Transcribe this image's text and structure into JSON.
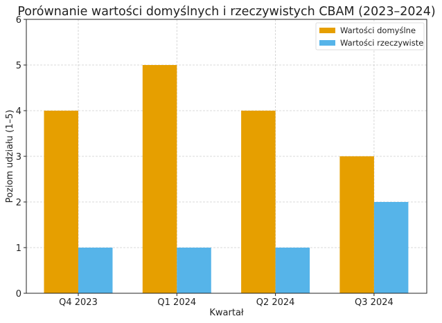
{
  "chart_data": {
    "type": "bar",
    "title": "Porównanie wartości domyślnych i rzeczywistych CBAM (2023–2024)",
    "xlabel": "Kwartał",
    "ylabel": "Poziom udziału (1–5)",
    "categories": [
      "Q4 2023",
      "Q1 2024",
      "Q2 2024",
      "Q3 2024"
    ],
    "series": [
      {
        "name": "Wartości domyślne",
        "values": [
          4,
          5,
          4,
          3
        ],
        "color": "#E69F00"
      },
      {
        "name": "Wartości rzeczywiste",
        "values": [
          1,
          1,
          1,
          2
        ],
        "color": "#56B4E9"
      }
    ],
    "ylim": [
      0,
      6
    ],
    "yticks": [
      0,
      1,
      2,
      3,
      4,
      5,
      6
    ],
    "grid": true,
    "legend": "top-right"
  }
}
